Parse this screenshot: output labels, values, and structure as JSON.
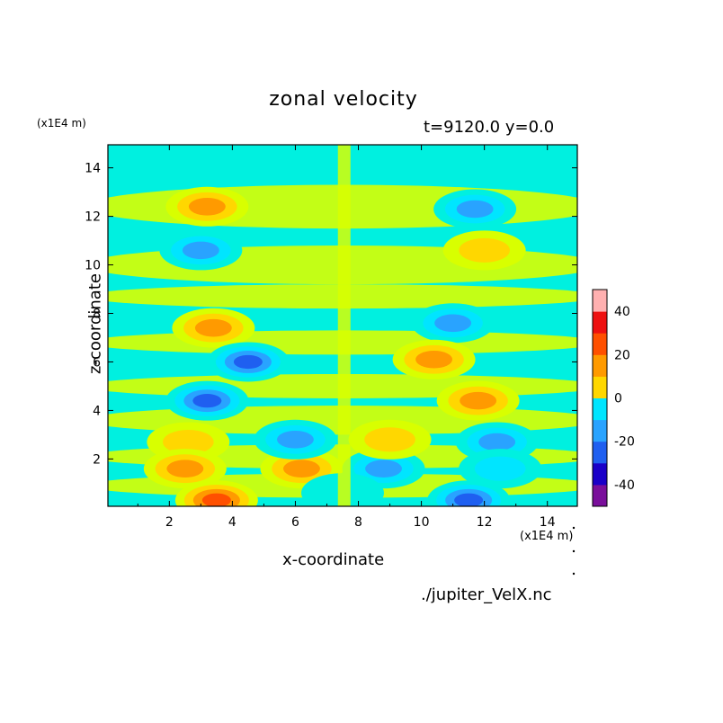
{
  "chart_data": {
    "type": "heatmap",
    "title": "zonal velocity",
    "subtitle": "t=9120.0 y=0.0",
    "xlabel": "x-coordinate",
    "ylabel": "z-coordinate",
    "x_units": "(x1E4 m)",
    "y_units": "(x1E4 m)",
    "xlim": [
      0.05,
      14.95
    ],
    "ylim": [
      0.05,
      14.95
    ],
    "x_ticks": [
      2,
      4,
      6,
      8,
      10,
      12,
      14
    ],
    "y_ticks": [
      2,
      4,
      6,
      8,
      10,
      12,
      14
    ],
    "colorbar": {
      "levels": [
        -50,
        -40,
        -30,
        -20,
        -10,
        0,
        10,
        20,
        30,
        40,
        50
      ],
      "tick_labels": [
        -40,
        -20,
        0,
        20,
        40
      ],
      "colors": [
        "#7a0f9b",
        "#1a00c8",
        "#1f5ff0",
        "#29a3ff",
        "#00e5ff",
        "#00f0e0",
        "#d8ff00",
        "#ffd700",
        "#ff9a00",
        "#ff5000",
        "#ee1010",
        "#ffb0b0"
      ]
    },
    "field_features": [
      {
        "x": 3.2,
        "z": 12.4,
        "value": 28
      },
      {
        "x": 11.7,
        "z": 12.3,
        "value": -34
      },
      {
        "x": 3.0,
        "z": 10.6,
        "value": -32
      },
      {
        "x": 12.0,
        "z": 10.6,
        "value": 22
      },
      {
        "x": 3.4,
        "z": 7.4,
        "value": 30
      },
      {
        "x": 11.0,
        "z": 7.6,
        "value": -26
      },
      {
        "x": 4.5,
        "z": 6.0,
        "value": -40
      },
      {
        "x": 10.4,
        "z": 6.1,
        "value": 30
      },
      {
        "x": 3.2,
        "z": 4.4,
        "value": -44
      },
      {
        "x": 11.8,
        "z": 4.4,
        "value": 32
      },
      {
        "x": 2.6,
        "z": 2.7,
        "value": 24
      },
      {
        "x": 12.4,
        "z": 2.7,
        "value": -26
      },
      {
        "x": 6.2,
        "z": 1.6,
        "value": 32
      },
      {
        "x": 8.8,
        "z": 1.6,
        "value": -34
      },
      {
        "x": 6.0,
        "z": 2.8,
        "value": -34
      },
      {
        "x": 9.0,
        "z": 2.8,
        "value": 24
      },
      {
        "x": 2.5,
        "z": 1.6,
        "value": 26
      },
      {
        "x": 12.5,
        "z": 1.6,
        "value": -24
      },
      {
        "x": 3.5,
        "z": 0.3,
        "value": 40
      },
      {
        "x": 11.5,
        "z": 0.3,
        "value": -40
      },
      {
        "x": 7.5,
        "z": 0.6,
        "value": -14
      }
    ]
  },
  "footer": {
    "source": "./jupiter_VelX.nc"
  }
}
